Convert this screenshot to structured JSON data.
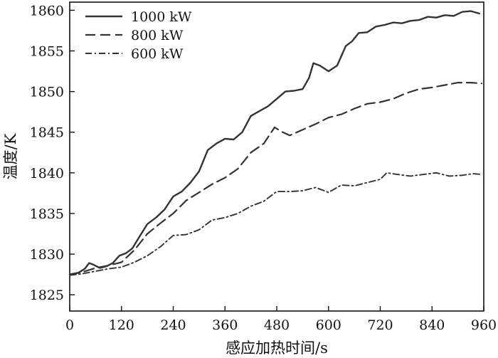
{
  "chart_data": {
    "type": "line",
    "title": "",
    "xlabel": "感应加热时间/s",
    "ylabel": "温度/K",
    "xlim": [
      0,
      960
    ],
    "ylim": [
      1823,
      1861
    ],
    "xticks": [
      0,
      120,
      240,
      360,
      480,
      600,
      720,
      840,
      960
    ],
    "yticks": [
      1825,
      1830,
      1835,
      1840,
      1845,
      1850,
      1855,
      1860
    ],
    "grid": false,
    "legend": "top-left",
    "series": [
      {
        "name": "1000 kW",
        "style": "solid",
        "color": "#333333",
        "x": [
          0,
          20,
          35,
          45,
          55,
          70,
          85,
          100,
          115,
          130,
          145,
          160,
          180,
          200,
          220,
          240,
          260,
          280,
          300,
          320,
          340,
          360,
          380,
          400,
          420,
          440,
          460,
          480,
          500,
          520,
          540,
          555,
          565,
          580,
          600,
          620,
          640,
          655,
          670,
          690,
          710,
          730,
          750,
          770,
          790,
          810,
          830,
          850,
          870,
          890,
          910,
          930,
          950
        ],
        "y": [
          1827.5,
          1827.7,
          1828.2,
          1828.9,
          1828.7,
          1828.3,
          1828.5,
          1828.9,
          1829.8,
          1830.1,
          1830.7,
          1832.0,
          1833.7,
          1834.5,
          1835.5,
          1837.1,
          1837.7,
          1838.8,
          1840.2,
          1842.8,
          1843.6,
          1844.2,
          1844.1,
          1845.0,
          1847.0,
          1847.6,
          1848.2,
          1849.1,
          1850.0,
          1850.1,
          1850.3,
          1851.7,
          1853.5,
          1853.2,
          1852.5,
          1853.2,
          1855.6,
          1856.2,
          1857.2,
          1857.3,
          1858.0,
          1858.2,
          1858.5,
          1858.4,
          1858.7,
          1858.8,
          1859.2,
          1859.1,
          1859.4,
          1859.3,
          1859.8,
          1859.9,
          1859.6
        ]
      },
      {
        "name": "800 kW",
        "style": "dashed",
        "color": "#333333",
        "x": [
          0,
          30,
          60,
          90,
          120,
          150,
          180,
          210,
          240,
          270,
          300,
          330,
          360,
          390,
          420,
          450,
          475,
          490,
          510,
          540,
          570,
          600,
          630,
          660,
          690,
          720,
          750,
          780,
          810,
          840,
          870,
          900,
          930,
          955
        ],
        "y": [
          1827.5,
          1827.8,
          1828.3,
          1828.6,
          1829.0,
          1830.5,
          1832.5,
          1833.8,
          1835.0,
          1836.6,
          1837.6,
          1838.6,
          1839.4,
          1840.5,
          1842.5,
          1843.6,
          1845.6,
          1845.1,
          1844.6,
          1845.3,
          1846.0,
          1846.8,
          1847.2,
          1847.9,
          1848.5,
          1848.7,
          1849.1,
          1849.8,
          1850.3,
          1850.5,
          1850.8,
          1851.1,
          1851.1,
          1851.0
        ]
      },
      {
        "name": "600 kW",
        "style": "dashdot",
        "color": "#333333",
        "x": [
          0,
          30,
          60,
          90,
          120,
          150,
          180,
          210,
          240,
          270,
          300,
          330,
          360,
          390,
          420,
          450,
          480,
          510,
          540,
          570,
          600,
          630,
          660,
          690,
          720,
          735,
          760,
          790,
          820,
          850,
          880,
          910,
          935,
          955
        ],
        "y": [
          1827.4,
          1827.6,
          1827.9,
          1828.2,
          1828.4,
          1829.0,
          1829.8,
          1830.9,
          1832.3,
          1832.4,
          1833.0,
          1834.2,
          1834.5,
          1835.0,
          1835.9,
          1836.5,
          1837.7,
          1837.7,
          1837.8,
          1838.2,
          1837.6,
          1838.5,
          1838.4,
          1838.8,
          1839.2,
          1840.0,
          1839.8,
          1839.6,
          1839.8,
          1840.0,
          1839.6,
          1839.7,
          1839.9,
          1839.8
        ]
      }
    ]
  }
}
